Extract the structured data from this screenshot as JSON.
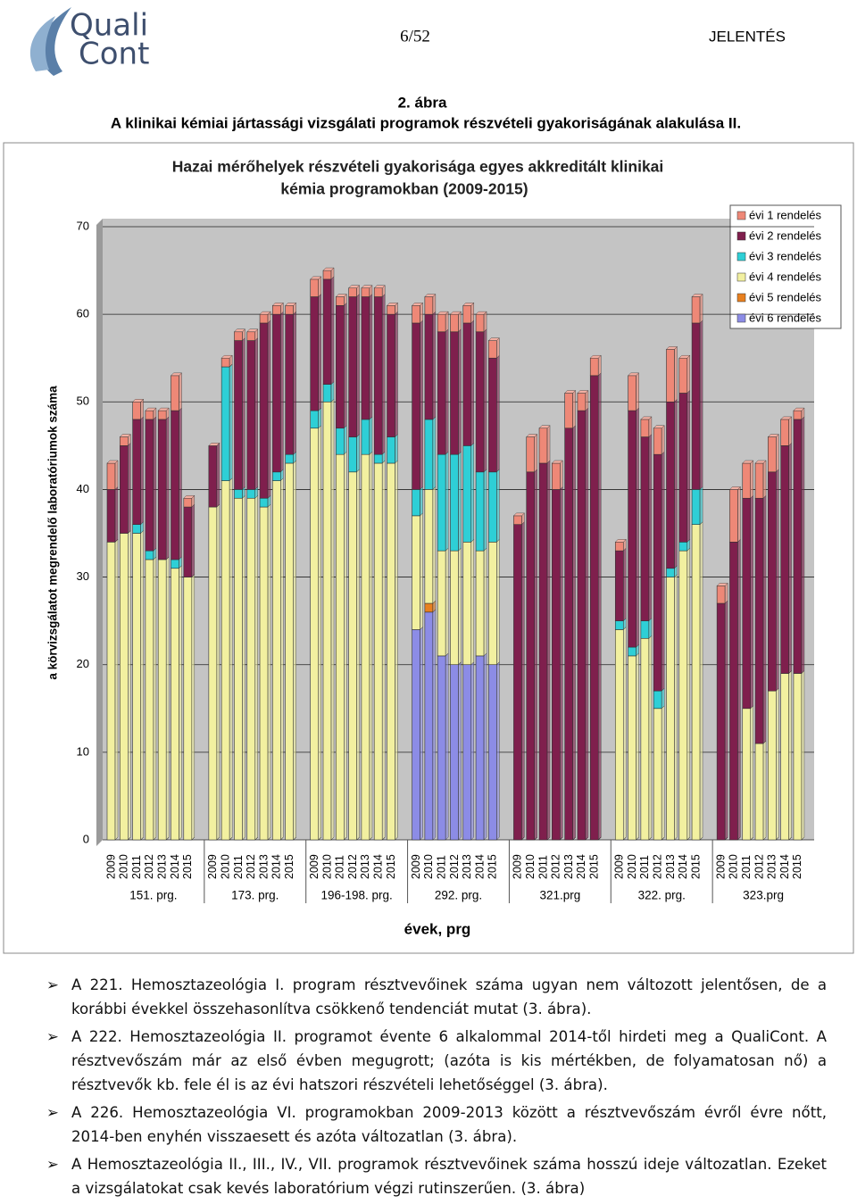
{
  "header": {
    "logo": [
      "Quali",
      "Cont"
    ],
    "page": "6/52",
    "label": "JELENTÉS"
  },
  "figure": {
    "number": "2. ábra",
    "caption": "A klinikai kémiai jártassági vizsgálati programok részvételi gyakoriságának alakulása II."
  },
  "chart_data": {
    "type": "stacked-bar",
    "title": [
      "Hazai mérőhelyek részvételi gyakorisága egyes akkreditált klinikai",
      "kémia programokban  (2009-2015)"
    ],
    "ylabel": "a körvizsgálatot megrendelő laboratóriumok száma",
    "xlabel": "évek, prg",
    "groups": [
      "151. prg.",
      "173. prg.",
      "196-198. prg.",
      "292. prg.",
      "321.prg",
      "322. prg.",
      "323.prg"
    ],
    "categories": [
      "2009",
      "2010",
      "2011",
      "2012",
      "2013",
      "2014",
      "2015",
      "2009",
      "2010",
      "2011",
      "2012",
      "2013",
      "2014",
      "2015",
      "2009",
      "2010",
      "2011",
      "2012",
      "2013",
      "2014",
      "2015",
      "2009",
      "2010",
      "2011",
      "2012",
      "2013",
      "2014",
      "2015",
      "2009",
      "2010",
      "2011",
      "2012",
      "2013",
      "2014",
      "2015",
      "2009",
      "2010",
      "2011",
      "2012",
      "2013",
      "2014",
      "2015",
      "2009",
      "2010",
      "2011",
      "2012",
      "2013",
      "2014",
      "2015"
    ],
    "ylim": [
      0,
      70
    ],
    "yticks": [
      0,
      10,
      20,
      30,
      40,
      50,
      60,
      70
    ],
    "grid": true,
    "legend": "top-right",
    "series": [
      {
        "name": "évi 1 rendelés",
        "color": "#ee8877",
        "values": [
          3,
          1,
          2,
          1,
          1,
          4,
          1,
          0,
          1,
          1,
          1,
          1,
          1,
          1,
          2,
          1,
          1,
          1,
          1,
          1,
          1,
          2,
          2,
          2,
          2,
          2,
          2,
          2,
          1,
          4,
          4,
          3,
          4,
          2,
          2,
          1,
          4,
          2,
          3,
          6,
          4,
          3,
          2,
          6,
          4,
          4,
          4,
          3,
          1
        ]
      },
      {
        "name": "évi 2 rendelés",
        "color": "#7f1f4d",
        "values": [
          6,
          10,
          12,
          15,
          16,
          17,
          8,
          7,
          0,
          17,
          17,
          20,
          18,
          16,
          13,
          12,
          14,
          16,
          14,
          18,
          14,
          19,
          12,
          14,
          14,
          14,
          16,
          13,
          36,
          42,
          43,
          40,
          47,
          49,
          53,
          8,
          27,
          21,
          27,
          19,
          17,
          19,
          27,
          34,
          24,
          28,
          25,
          26,
          29
        ]
      },
      {
        "name": "évi 3 rendelés",
        "color": "#2ecfd6",
        "values": [
          0,
          0,
          1,
          1,
          0,
          1,
          0,
          0,
          13,
          1,
          1,
          1,
          1,
          1,
          2,
          2,
          3,
          4,
          4,
          1,
          3,
          3,
          8,
          11,
          11,
          11,
          9,
          8,
          0,
          0,
          0,
          0,
          0,
          0,
          0,
          1,
          1,
          2,
          2,
          1,
          1,
          4,
          0,
          0,
          0,
          0,
          0,
          0,
          0
        ]
      },
      {
        "name": "évi 4 rendelés",
        "color": "#f2f0a0",
        "values": [
          34,
          35,
          35,
          32,
          32,
          31,
          30,
          38,
          41,
          39,
          39,
          38,
          41,
          43,
          47,
          50,
          44,
          42,
          44,
          43,
          43,
          13,
          13,
          12,
          13,
          14,
          12,
          14,
          0,
          0,
          0,
          0,
          0,
          0,
          0,
          24,
          21,
          23,
          15,
          30,
          33,
          36,
          0,
          0,
          15,
          11,
          17,
          19,
          19
        ]
      },
      {
        "name": "évi 5 rendelés",
        "color": "#e8801f",
        "values": [
          0,
          0,
          0,
          0,
          0,
          0,
          0,
          0,
          0,
          0,
          0,
          0,
          0,
          0,
          0,
          0,
          0,
          0,
          0,
          0,
          0,
          0,
          1,
          0,
          0,
          0,
          0,
          0,
          0,
          0,
          0,
          0,
          0,
          0,
          0,
          0,
          0,
          0,
          0,
          0,
          0,
          0,
          0,
          0,
          0,
          0,
          0,
          0,
          0
        ]
      },
      {
        "name": "évi 6 rendelés",
        "color": "#8c8ce6",
        "values": [
          0,
          0,
          0,
          0,
          0,
          0,
          0,
          0,
          0,
          0,
          0,
          0,
          0,
          0,
          0,
          0,
          0,
          0,
          0,
          0,
          0,
          24,
          26,
          21,
          20,
          20,
          21,
          20,
          0,
          0,
          0,
          0,
          0,
          0,
          0,
          0,
          0,
          0,
          0,
          0,
          0,
          0,
          0,
          0,
          0,
          0,
          0,
          0,
          0
        ]
      }
    ]
  },
  "bullets": [
    "A 221. Hemosztazeológia I. program résztvevőinek száma ugyan nem változott jelentősen, de a korábbi évekkel összehasonlítva csökkenő tendenciát mutat (3. ábra).",
    "A 222. Hemosztazeológia II. programot évente 6 alkalommal 2014-től hirdeti meg a QualiCont. A résztvevőszám már az első évben megugrott; (azóta is kis mértékben, de folyamatosan nő) a résztvevők kb. fele él is az évi hatszori részvételi lehetőséggel (3. ábra).",
    "A 226. Hemosztazeológia VI. programokban 2009-2013 között a résztvevőszám évről évre nőtt, 2014-ben enyhén visszaesett és azóta változatlan (3. ábra).",
    "A Hemosztazeológia II., III., IV., VII. programok résztvevőinek száma hosszú ideje változatlan. Ezeket a vizsgálatokat csak kevés laboratórium végzi rutinszerűen. (3. ábra)"
  ]
}
